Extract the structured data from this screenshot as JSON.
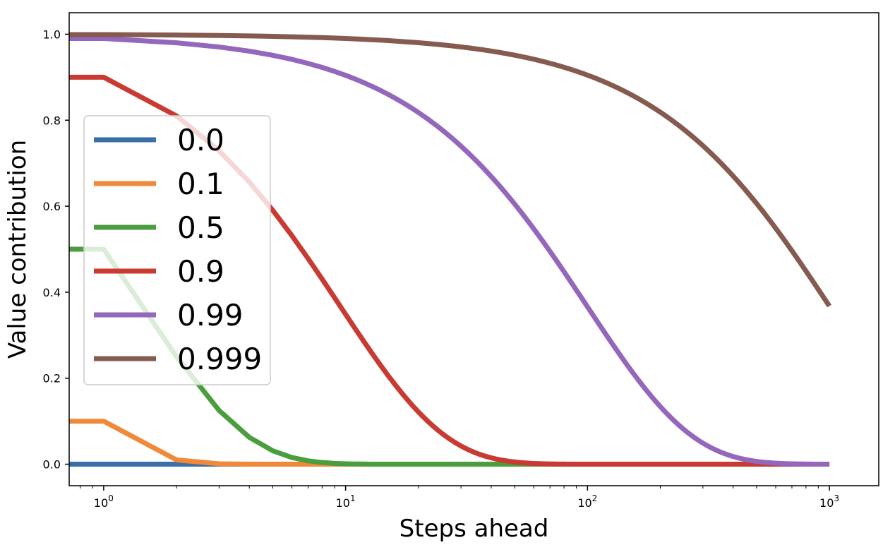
{
  "chart_data": {
    "type": "line",
    "title": "",
    "xlabel": "Steps ahead",
    "ylabel": "Value contribution",
    "xscale": "log",
    "xlim": [
      0.72,
      1600
    ],
    "ylim": [
      -0.05,
      1.05
    ],
    "grid": false,
    "legend_position": "left-center",
    "x_ticks": [
      {
        "value": 1,
        "base": "10",
        "exponent": "0"
      },
      {
        "value": 10,
        "base": "10",
        "exponent": "1"
      },
      {
        "value": 100,
        "base": "10",
        "exponent": "2"
      },
      {
        "value": 1000,
        "base": "10",
        "exponent": "3"
      }
    ],
    "y_ticks": [
      {
        "value": 0.0,
        "label": "0.0"
      },
      {
        "value": 0.2,
        "label": "0.2"
      },
      {
        "value": 0.4,
        "label": "0.4"
      },
      {
        "value": 0.6,
        "label": "0.6"
      },
      {
        "value": 0.8,
        "label": "0.8"
      },
      {
        "value": 1.0,
        "label": "1.0"
      }
    ],
    "x_start": 1,
    "x_end": 1000,
    "series": [
      {
        "name": "0.0",
        "gamma": 0.0,
        "color": "#3a6fa8"
      },
      {
        "name": "0.1",
        "gamma": 0.1,
        "color": "#f08a3a"
      },
      {
        "name": "0.5",
        "gamma": 0.5,
        "color": "#4a9e3d"
      },
      {
        "name": "0.9",
        "gamma": 0.9,
        "color": "#c83a32"
      },
      {
        "name": "0.99",
        "gamma": 0.99,
        "color": "#9467bd"
      },
      {
        "name": "0.999",
        "gamma": 0.999,
        "color": "#855a4f"
      }
    ]
  }
}
